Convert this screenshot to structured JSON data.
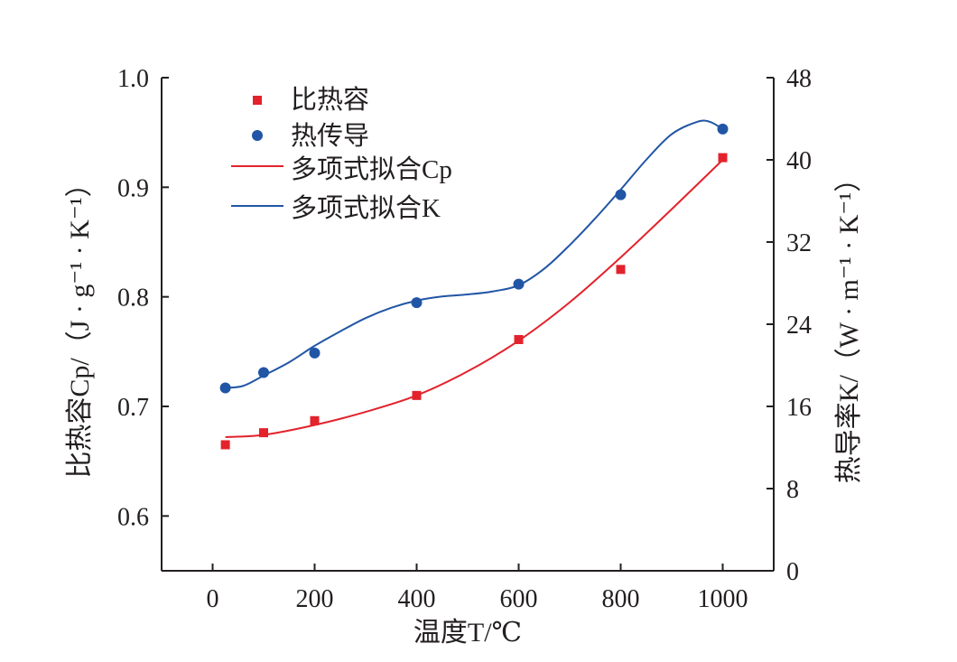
{
  "chart_data": {
    "type": "scatter",
    "x_axis": {
      "label": "温度T/℃",
      "range": [
        -100,
        1100
      ],
      "ticks": [
        0,
        200,
        400,
        600,
        800,
        1000
      ]
    },
    "y_axis_left": {
      "label": "比热容Cp/（J · g⁻¹ · K⁻¹）",
      "range": [
        0.55,
        1.0
      ],
      "ticks": [
        "0.6",
        "0.7",
        "0.8",
        "0.9",
        "1.0"
      ]
    },
    "y_axis_right": {
      "label": "热导率K/（W · m⁻¹ · K⁻¹）",
      "range": [
        0,
        48
      ],
      "ticks": [
        0,
        8,
        16,
        24,
        32,
        40,
        48
      ]
    },
    "series": [
      {
        "name": "比热容",
        "marker": "square",
        "axis": "left",
        "color": "#e3222b",
        "x": [
          25,
          100,
          200,
          400,
          600,
          800,
          1000
        ],
        "y": [
          0.665,
          0.676,
          0.687,
          0.71,
          0.761,
          0.825,
          0.927
        ]
      },
      {
        "name": "热传导",
        "marker": "circle",
        "axis": "right",
        "color": "#2155a5",
        "x": [
          25,
          100,
          200,
          400,
          600,
          800,
          1000
        ],
        "y": [
          17.8,
          19.3,
          21.2,
          26.1,
          27.9,
          36.6,
          43.0
        ]
      }
    ],
    "fits": [
      {
        "name": "多项式拟合Cp",
        "axis": "left",
        "color": "#e3222b",
        "x": [
          25,
          100,
          200,
          300,
          400,
          500,
          600,
          700,
          800,
          900,
          1000
        ],
        "y": [
          0.672,
          0.674,
          0.683,
          0.695,
          0.71,
          0.732,
          0.76,
          0.795,
          0.836,
          0.88,
          0.925
        ]
      },
      {
        "name": "多项式拟合K",
        "axis": "right",
        "color": "#2155a5",
        "x": [
          25,
          60,
          100,
          150,
          200,
          250,
          300,
          350,
          400,
          450,
          500,
          550,
          600,
          650,
          700,
          750,
          800,
          850,
          900,
          950,
          975,
          1000
        ],
        "y": [
          17.8,
          18.0,
          19.0,
          20.3,
          21.9,
          23.3,
          24.6,
          25.6,
          26.3,
          26.7,
          26.9,
          27.2,
          27.8,
          29.4,
          31.7,
          34.3,
          37.1,
          40.0,
          42.5,
          43.7,
          43.7,
          43.0
        ]
      }
    ],
    "legend": {
      "position": "top-left",
      "entries": [
        "比热容",
        "热传导",
        "多项式拟合Cp",
        "多项式拟合K"
      ]
    },
    "grid": false
  }
}
